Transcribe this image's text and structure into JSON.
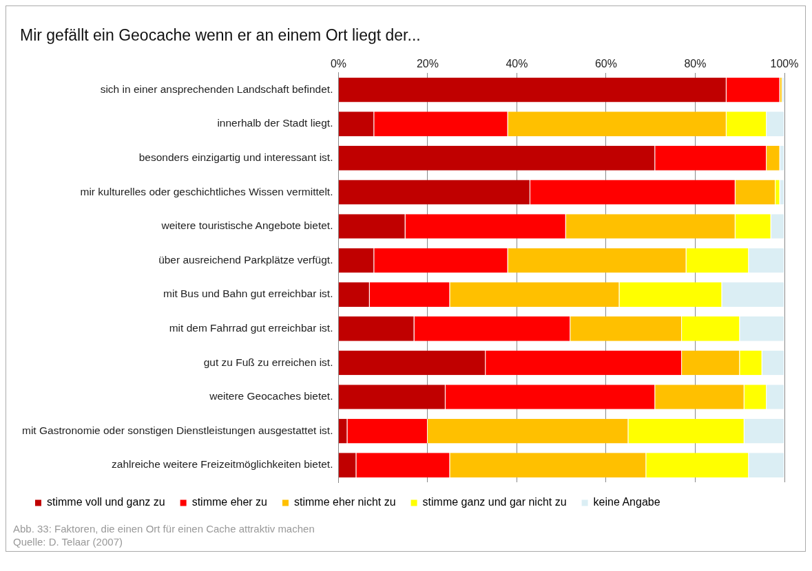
{
  "chart_data": {
    "type": "bar",
    "orientation": "horizontal",
    "stacked": true,
    "title": "Mir gefällt ein Geocache wenn er an einem Ort liegt der...",
    "categories": [
      "sich in einer ansprechenden Landschaft befindet.",
      "innerhalb der Stadt liegt.",
      "besonders einzigartig und interessant ist.",
      "mir kulturelles oder geschichtliches Wissen vermittelt.",
      "weitere touristische Angebote bietet.",
      "über ausreichend Parkplätze verfügt.",
      "mit Bus und Bahn gut erreichbar ist.",
      "mit dem Fahrrad gut erreichbar ist.",
      "gut zu Fuß zu erreichen ist.",
      "weitere Geocaches bietet.",
      "mit Gastronomie oder sonstigen Dienstleistungen ausgestattet ist.",
      "zahlreiche weitere Freizeitmöglichkeiten bietet."
    ],
    "series": [
      {
        "name": "stimme voll und ganz zu",
        "color": "#c00000",
        "values": [
          87,
          8,
          71,
          43,
          15,
          8,
          7,
          17,
          33,
          24,
          2,
          4
        ]
      },
      {
        "name": "stimme eher zu",
        "color": "#ff0000",
        "values": [
          12,
          30,
          25,
          46,
          36,
          30,
          18,
          35,
          44,
          47,
          18,
          21
        ]
      },
      {
        "name": "stimme eher nicht zu",
        "color": "#ffc000",
        "values": [
          0.5,
          49,
          3,
          9,
          38,
          40,
          38,
          25,
          13,
          20,
          45,
          44
        ]
      },
      {
        "name": "stimme ganz und gar nicht zu",
        "color": "#ffff00",
        "values": [
          0,
          9,
          0,
          1,
          8,
          14,
          23,
          13,
          5,
          5,
          26,
          23
        ]
      },
      {
        "name": "keine Angabe",
        "color": "#dbeef4",
        "values": [
          0.5,
          4,
          1,
          1,
          3,
          8,
          14,
          10,
          5,
          4,
          9,
          8
        ]
      }
    ],
    "xlim": [
      0,
      100
    ],
    "xticks": [
      {
        "value": 0,
        "label": "0%"
      },
      {
        "value": 20,
        "label": "20%"
      },
      {
        "value": 40,
        "label": "40%"
      },
      {
        "value": 60,
        "label": "60%"
      },
      {
        "value": 80,
        "label": "80%"
      },
      {
        "value": 100,
        "label": "100%"
      }
    ],
    "grid": "x",
    "legend": "bottom",
    "annotations": [
      "Abb. 33: Faktoren, die einen Ort für einen Cache attraktiv machen",
      "Quelle: D. Telaar (2007)"
    ]
  }
}
